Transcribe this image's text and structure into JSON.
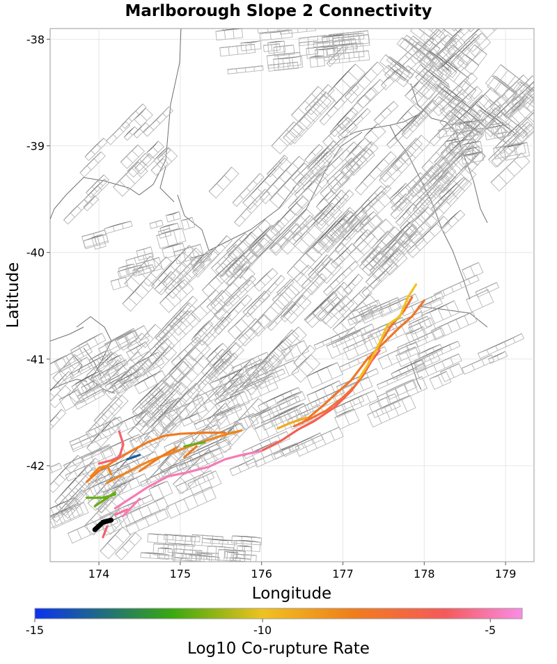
{
  "chart_data": {
    "type": "map",
    "title": "Marlborough Slope 2 Connectivity",
    "xlabel": "Longitude",
    "ylabel": "Latitude",
    "xlim": [
      173.4,
      179.35
    ],
    "ylim": [
      -42.9,
      -37.9
    ],
    "xticks": [
      174,
      175,
      176,
      177,
      178,
      179
    ],
    "yticks": [
      -38,
      -39,
      -40,
      -41,
      -42
    ],
    "grid": true,
    "colorbar": {
      "label": "Log10 Co-rupture Rate",
      "range": [
        -15,
        -4.3
      ],
      "ticks": [
        -15,
        -10,
        -5
      ],
      "colors": [
        "#0a32f0",
        "#38a80f",
        "#f0c21e",
        "#f07d1c",
        "#f55a5a",
        "#fa8ce6"
      ],
      "color_stops": [
        -15,
        -12,
        -10,
        -8,
        -6,
        -4.3
      ]
    },
    "source_fault": {
      "name": "Marlborough Slope 2",
      "color": "#000000",
      "trace": [
        [
          173.95,
          -42.6
        ],
        [
          174.05,
          -42.53
        ],
        [
          174.15,
          -42.51
        ]
      ]
    },
    "ruptures": [
      {
        "rate": -6.2,
        "trace": [
          [
            176.0,
            -41.86
          ],
          [
            176.25,
            -41.76
          ],
          [
            176.45,
            -41.66
          ],
          [
            176.65,
            -41.58
          ],
          [
            176.9,
            -41.45
          ],
          [
            177.1,
            -41.3
          ],
          [
            177.25,
            -41.15
          ],
          [
            177.35,
            -41.02
          ],
          [
            177.45,
            -40.92
          ]
        ]
      },
      {
        "rate": -4.9,
        "trace": [
          [
            174.2,
            -42.4
          ],
          [
            174.4,
            -42.3
          ],
          [
            174.6,
            -42.2
          ],
          [
            174.85,
            -42.1
          ],
          [
            175.1,
            -42.06
          ],
          [
            175.35,
            -42.01
          ],
          [
            175.55,
            -41.94
          ],
          [
            175.75,
            -41.9
          ],
          [
            176.0,
            -41.86
          ]
        ]
      },
      {
        "rate": -5.2,
        "trace": [
          [
            174.2,
            -42.46
          ],
          [
            174.35,
            -42.41
          ]
        ]
      },
      {
        "rate": -4.9,
        "trace": [
          [
            174.3,
            -42.47
          ],
          [
            174.5,
            -42.31
          ]
        ]
      },
      {
        "rate": -7.9,
        "trace": [
          [
            173.85,
            -42.15
          ],
          [
            174.0,
            -42.05
          ],
          [
            174.2,
            -41.95
          ],
          [
            174.4,
            -41.86
          ],
          [
            174.6,
            -41.78
          ],
          [
            174.8,
            -41.72
          ],
          [
            175.0,
            -41.7
          ],
          [
            175.3,
            -41.69
          ],
          [
            175.55,
            -41.69
          ]
        ]
      },
      {
        "rate": -8.2,
        "trace": [
          [
            174.1,
            -42.16
          ],
          [
            174.3,
            -42.08
          ],
          [
            174.5,
            -42.0
          ],
          [
            174.7,
            -41.93
          ],
          [
            174.9,
            -41.88
          ],
          [
            175.1,
            -41.82
          ],
          [
            175.3,
            -41.77
          ],
          [
            175.5,
            -41.72
          ],
          [
            175.75,
            -41.67
          ]
        ]
      },
      {
        "rate": -7.9,
        "trace": [
          [
            174.5,
            -42.05
          ],
          [
            174.75,
            -41.92
          ],
          [
            174.95,
            -41.83
          ]
        ]
      },
      {
        "rate": -7.9,
        "trace": [
          [
            175.05,
            -41.92
          ],
          [
            175.2,
            -41.82
          ]
        ]
      },
      {
        "rate": -7.6,
        "trace": [
          [
            176.5,
            -41.6
          ],
          [
            176.75,
            -41.44
          ],
          [
            176.95,
            -41.3
          ],
          [
            177.1,
            -41.2
          ],
          [
            177.2,
            -41.1
          ],
          [
            177.3,
            -41.0
          ],
          [
            177.5,
            -40.85
          ],
          [
            177.7,
            -40.7
          ],
          [
            177.85,
            -40.6
          ],
          [
            178.0,
            -40.45
          ]
        ]
      },
      {
        "rate": -7.3,
        "trace": [
          [
            176.4,
            -41.63
          ],
          [
            176.6,
            -41.56
          ],
          [
            176.8,
            -41.48
          ],
          [
            177.0,
            -41.36
          ],
          [
            177.15,
            -41.25
          ],
          [
            177.25,
            -41.15
          ],
          [
            177.35,
            -40.98
          ],
          [
            177.5,
            -40.8
          ],
          [
            177.6,
            -40.68
          ],
          [
            177.75,
            -40.55
          ],
          [
            177.85,
            -40.42
          ]
        ]
      },
      {
        "rate": -9.3,
        "trace": [
          [
            176.2,
            -41.65
          ],
          [
            176.35,
            -41.6
          ],
          [
            176.55,
            -41.55
          ]
        ]
      },
      {
        "rate": -10.0,
        "trace": [
          [
            177.2,
            -41.18
          ],
          [
            177.35,
            -41.0
          ],
          [
            177.45,
            -40.85
          ],
          [
            177.55,
            -40.68
          ],
          [
            177.7,
            -40.6
          ],
          [
            177.8,
            -40.42
          ],
          [
            177.9,
            -40.3
          ]
        ]
      },
      {
        "rate": -11.5,
        "trace": [
          [
            175.05,
            -41.82
          ],
          [
            175.15,
            -41.8
          ],
          [
            175.3,
            -41.78
          ]
        ]
      },
      {
        "rate": -11.5,
        "trace": [
          [
            173.85,
            -42.3
          ],
          [
            174.05,
            -42.3
          ],
          [
            174.2,
            -42.27
          ]
        ]
      },
      {
        "rate": -11.5,
        "trace": [
          [
            173.95,
            -42.38
          ],
          [
            174.2,
            -42.25
          ]
        ]
      },
      {
        "rate": -14.0,
        "trace": [
          [
            174.35,
            -41.94
          ],
          [
            174.5,
            -41.9
          ]
        ]
      },
      {
        "rate": -5.8,
        "trace": [
          [
            174.25,
            -41.68
          ],
          [
            174.3,
            -41.8
          ],
          [
            174.25,
            -41.92
          ],
          [
            174.15,
            -41.95
          ],
          [
            174.0,
            -41.98
          ]
        ]
      },
      {
        "rate": -5.8,
        "trace": [
          [
            174.05,
            -42.67
          ],
          [
            174.1,
            -42.57
          ]
        ]
      },
      {
        "rate": -8.2,
        "trace": [
          [
            173.9,
            -42.1
          ],
          [
            174.0,
            -42.02
          ],
          [
            174.1,
            -42.0
          ],
          [
            174.15,
            -42.08
          ]
        ]
      }
    ]
  }
}
